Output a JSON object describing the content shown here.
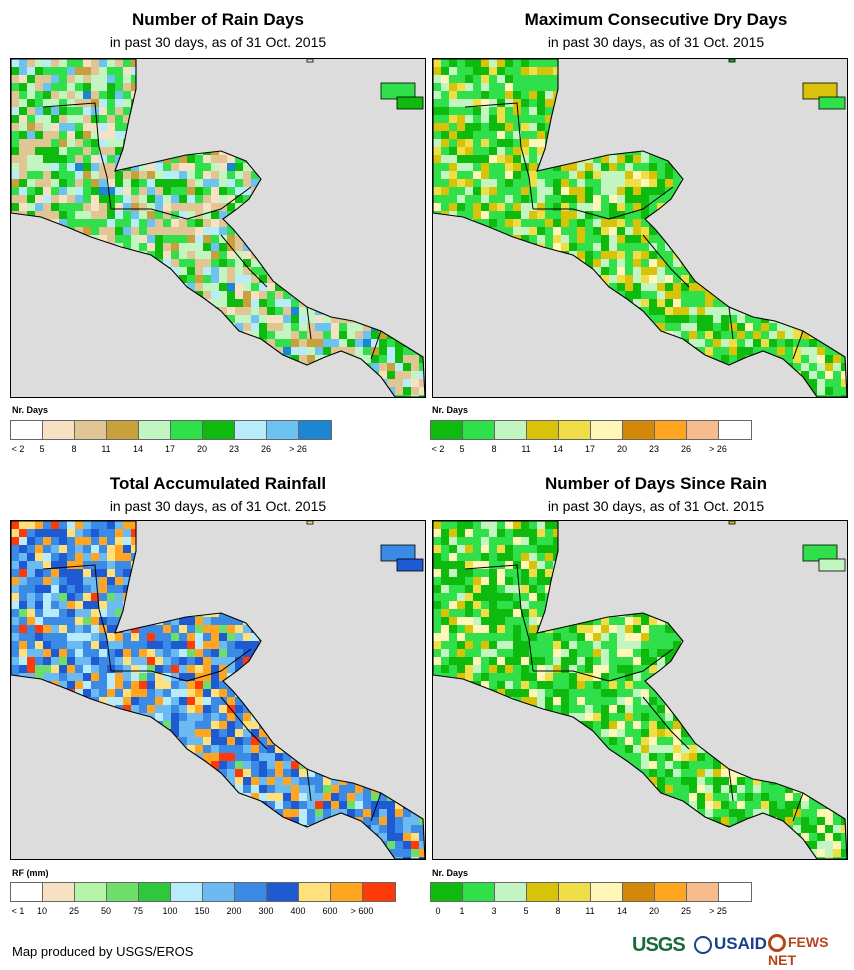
{
  "panels": [
    {
      "title": "Number of Rain Days",
      "subtitle": "in past 30 days, as of 31 Oct. 2015",
      "legend_title": "Nr. Days",
      "legend_colors": [
        "#ffffff",
        "#f6e2c2",
        "#e1c594",
        "#c8a13d",
        "#c2f5c2",
        "#2fe04a",
        "#0fba0f",
        "#b8ecfa",
        "#6cc3f2",
        "#1c86d2"
      ],
      "legend_labels": [
        "< 2",
        "5",
        "8",
        "11",
        "14",
        "17",
        "20",
        "23",
        "26",
        "> 26"
      ]
    },
    {
      "title": "Maximum Consecutive Dry Days",
      "subtitle": "in past 30 days, as of 31 Oct. 2015",
      "legend_title": "Nr. Days",
      "legend_colors": [
        "#0fba0f",
        "#2fe04a",
        "#c2f5c2",
        "#d8c20a",
        "#f0de48",
        "#fff7b8",
        "#d4880a",
        "#ffa51f",
        "#f8bc8c",
        "#ffffff"
      ],
      "legend_labels": [
        "< 2",
        "5",
        "8",
        "11",
        "14",
        "17",
        "20",
        "23",
        "26",
        "> 26"
      ]
    },
    {
      "title": "Total Accumulated Rainfall",
      "subtitle": "in past 30 days, as of 31 Oct. 2015",
      "legend_title": "RF (mm)",
      "legend_colors": [
        "#ffffff",
        "#f6e2c2",
        "#b4f5a8",
        "#6ede6a",
        "#2fc83c",
        "#b8ecfa",
        "#6cbaf2",
        "#3a8ae6",
        "#1e5ad2",
        "#ffe07a",
        "#ffa51f",
        "#ff3a0a"
      ],
      "legend_labels": [
        "< 1",
        "10",
        "25",
        "50",
        "75",
        "100",
        "150",
        "200",
        "300",
        "400",
        "600",
        "> 600"
      ]
    },
    {
      "title": "Number of Days Since Rain",
      "subtitle": "in past 30 days, as of 31 Oct. 2015",
      "legend_title": "Nr. Days",
      "legend_colors": [
        "#0fba0f",
        "#2fe04a",
        "#c2f5c2",
        "#d8c20a",
        "#f0de48",
        "#fff7b8",
        "#d4880a",
        "#ffa51f",
        "#f8bc8c",
        "#ffffff"
      ],
      "legend_labels": [
        "0",
        "1",
        "3",
        "5",
        "8",
        "11",
        "14",
        "20",
        "25",
        "> 25"
      ]
    }
  ],
  "credit": "Map produced by USGS/EROS",
  "logos": {
    "usgs": "USGS",
    "usaid": "USAID",
    "fews": "FEWS NET"
  },
  "colors": {
    "ocean": "#dcdcdc",
    "border": "#000000"
  }
}
